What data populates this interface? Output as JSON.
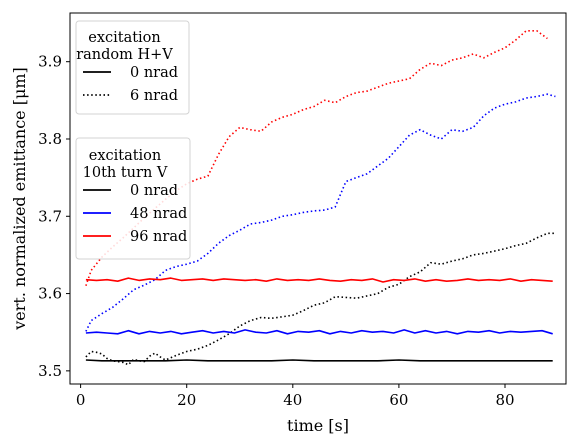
{
  "chart_data": {
    "type": "line",
    "xlabel": "time [s]",
    "ylabel": "vert. normalized emittance [μm]",
    "xlim": [
      -2,
      91.5
    ],
    "ylim": [
      3.483,
      3.963
    ],
    "xticks": [
      0,
      20,
      40,
      60,
      80
    ],
    "yticks": [
      3.5,
      3.6,
      3.7,
      3.8,
      3.9
    ],
    "ytick_labels": [
      "3.5",
      "3.6",
      "3.7",
      "3.8",
      "3.9"
    ],
    "grid": false,
    "legends": [
      {
        "placement": "top-left",
        "title_lines": [
          "excitation",
          "random H+V"
        ],
        "entries": [
          {
            "label": "0 nrad",
            "color": "#000000",
            "style": "solid"
          },
          {
            "label": "6 nrad",
            "color": "#000000",
            "style": "dotted"
          }
        ]
      },
      {
        "placement": "center-left",
        "title_lines": [
          "excitation",
          "10th turn V"
        ],
        "entries": [
          {
            "label": "0 nrad",
            "color": "#000000",
            "style": "solid"
          },
          {
            "label": "48 nrad",
            "color": "#0000ff",
            "style": "solid"
          },
          {
            "label": "96 nrad",
            "color": "#ff0000",
            "style": "solid"
          }
        ]
      }
    ],
    "series": [
      {
        "group": "random H+V",
        "label": "6 nrad",
        "color": "#ff0000",
        "style": "dotted",
        "x": [
          1,
          2,
          4,
          6,
          8,
          10,
          12,
          14,
          16,
          18,
          20,
          22,
          24,
          26,
          28,
          30,
          32,
          34,
          36,
          38,
          40,
          42,
          44,
          46,
          48,
          50,
          52,
          54,
          56,
          58,
          60,
          62,
          64,
          66,
          68,
          70,
          72,
          74,
          76,
          78,
          80,
          82,
          84,
          86,
          88
        ],
        "y": [
          3.61,
          3.63,
          3.647,
          3.66,
          3.672,
          3.685,
          3.698,
          3.71,
          3.722,
          3.733,
          3.742,
          3.748,
          3.752,
          3.78,
          3.803,
          3.815,
          3.812,
          3.81,
          3.822,
          3.828,
          3.832,
          3.838,
          3.842,
          3.85,
          3.847,
          3.855,
          3.86,
          3.862,
          3.867,
          3.872,
          3.875,
          3.878,
          3.89,
          3.898,
          3.895,
          3.902,
          3.905,
          3.91,
          3.905,
          3.912,
          3.918,
          3.928,
          3.94,
          3.94,
          3.93
        ]
      },
      {
        "group": "random H+V",
        "label": "6 nrad",
        "color": "#0000ff",
        "style": "dotted",
        "x": [
          1,
          2,
          4,
          6,
          8,
          10,
          12,
          14,
          16,
          18,
          20,
          22,
          24,
          26,
          28,
          30,
          32,
          34,
          36,
          38,
          40,
          42,
          44,
          46,
          48,
          50,
          52,
          54,
          56,
          58,
          60,
          62,
          64,
          66,
          68,
          70,
          72,
          74,
          76,
          78,
          80,
          82,
          84,
          86,
          88,
          89.5
        ],
        "y": [
          3.551,
          3.565,
          3.574,
          3.582,
          3.593,
          3.605,
          3.611,
          3.618,
          3.63,
          3.635,
          3.638,
          3.642,
          3.652,
          3.665,
          3.675,
          3.682,
          3.69,
          3.692,
          3.695,
          3.7,
          3.702,
          3.705,
          3.707,
          3.708,
          3.712,
          3.745,
          3.75,
          3.755,
          3.765,
          3.775,
          3.79,
          3.805,
          3.812,
          3.805,
          3.8,
          3.812,
          3.81,
          3.815,
          3.83,
          3.84,
          3.845,
          3.848,
          3.853,
          3.855,
          3.858,
          3.855
        ]
      },
      {
        "group": "random H+V",
        "label": "6 nrad",
        "color": "#000000",
        "style": "dotted",
        "x": [
          1,
          2,
          3,
          4,
          5,
          6,
          7,
          8,
          9,
          10,
          11,
          12,
          13,
          14,
          15,
          16,
          18,
          20,
          22,
          24,
          26,
          28,
          30,
          32,
          34,
          36,
          38,
          40,
          42,
          44,
          46,
          48,
          50,
          52,
          54,
          56,
          58,
          60,
          62,
          64,
          66,
          68,
          70,
          72,
          74,
          76,
          78,
          80,
          82,
          84,
          86,
          88,
          89.5
        ],
        "y": [
          3.518,
          3.525,
          3.524,
          3.522,
          3.516,
          3.513,
          3.512,
          3.511,
          3.508,
          3.515,
          3.513,
          3.512,
          3.519,
          3.523,
          3.518,
          3.514,
          3.52,
          3.525,
          3.528,
          3.533,
          3.54,
          3.548,
          3.558,
          3.565,
          3.569,
          3.568,
          3.57,
          3.572,
          3.578,
          3.585,
          3.588,
          3.596,
          3.595,
          3.594,
          3.597,
          3.6,
          3.608,
          3.612,
          3.622,
          3.628,
          3.64,
          3.638,
          3.642,
          3.645,
          3.65,
          3.652,
          3.655,
          3.658,
          3.662,
          3.665,
          3.672,
          3.678,
          3.678
        ]
      },
      {
        "group": "10th turn V",
        "label": "0 nrad",
        "color": "#000000",
        "style": "solid",
        "x": [
          1,
          4,
          8,
          12,
          16,
          20,
          24,
          28,
          32,
          36,
          40,
          44,
          48,
          52,
          56,
          60,
          64,
          68,
          72,
          76,
          80,
          84,
          89
        ],
        "y": [
          3.514,
          3.513,
          3.513,
          3.513,
          3.513,
          3.514,
          3.513,
          3.513,
          3.513,
          3.513,
          3.514,
          3.513,
          3.513,
          3.513,
          3.513,
          3.514,
          3.513,
          3.513,
          3.513,
          3.513,
          3.513,
          3.513,
          3.513
        ]
      },
      {
        "group": "10th turn V",
        "label": "48 nrad",
        "color": "#0000ff",
        "style": "solid",
        "x": [
          1,
          3,
          5,
          7,
          9,
          11,
          13,
          15,
          17,
          19,
          21,
          23,
          25,
          27,
          29,
          31,
          33,
          35,
          37,
          39,
          41,
          43,
          45,
          47,
          49,
          51,
          53,
          55,
          57,
          59,
          61,
          63,
          65,
          67,
          69,
          71,
          73,
          75,
          77,
          79,
          81,
          83,
          85,
          87,
          89
        ],
        "y": [
          3.549,
          3.55,
          3.549,
          3.548,
          3.552,
          3.548,
          3.551,
          3.549,
          3.551,
          3.548,
          3.55,
          3.552,
          3.549,
          3.551,
          3.549,
          3.553,
          3.55,
          3.549,
          3.552,
          3.548,
          3.551,
          3.55,
          3.552,
          3.548,
          3.551,
          3.549,
          3.552,
          3.55,
          3.551,
          3.549,
          3.553,
          3.549,
          3.552,
          3.549,
          3.551,
          3.548,
          3.551,
          3.55,
          3.552,
          3.549,
          3.551,
          3.55,
          3.551,
          3.552,
          3.548
        ]
      },
      {
        "group": "10th turn V",
        "label": "96 nrad",
        "color": "#ff0000",
        "style": "solid",
        "x": [
          1,
          3,
          5,
          7,
          9,
          11,
          13,
          15,
          17,
          19,
          21,
          23,
          25,
          27,
          29,
          31,
          33,
          35,
          37,
          39,
          41,
          43,
          45,
          47,
          49,
          51,
          53,
          55,
          57,
          59,
          61,
          63,
          65,
          67,
          69,
          71,
          73,
          75,
          77,
          79,
          81,
          83,
          85,
          87,
          89
        ],
        "y": [
          3.618,
          3.617,
          3.618,
          3.616,
          3.62,
          3.617,
          3.619,
          3.618,
          3.62,
          3.617,
          3.618,
          3.619,
          3.617,
          3.619,
          3.618,
          3.617,
          3.618,
          3.616,
          3.619,
          3.617,
          3.618,
          3.617,
          3.619,
          3.617,
          3.616,
          3.618,
          3.617,
          3.619,
          3.615,
          3.618,
          3.617,
          3.619,
          3.616,
          3.618,
          3.616,
          3.617,
          3.619,
          3.617,
          3.618,
          3.617,
          3.619,
          3.616,
          3.618,
          3.617,
          3.616
        ]
      }
    ]
  }
}
